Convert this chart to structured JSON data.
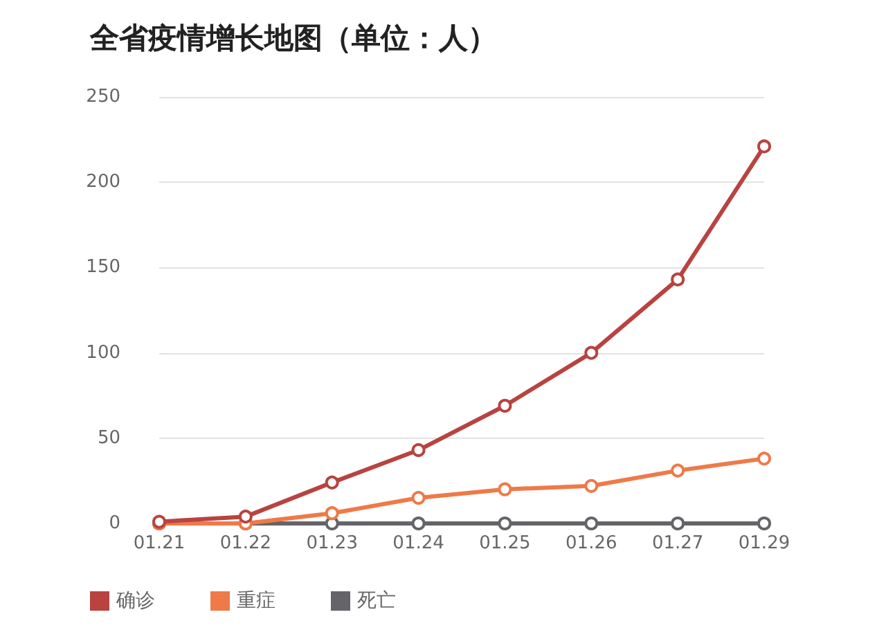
{
  "chart_data": {
    "type": "line",
    "title": "全省疫情增长地图（单位：人）",
    "categories": [
      "01.21",
      "01.22",
      "01.23",
      "01.24",
      "01.25",
      "01.26",
      "01.27",
      "01.29"
    ],
    "series": [
      {
        "name": "确诊",
        "color": "#b84340",
        "values": [
          1,
          4,
          24,
          43,
          69,
          100,
          143,
          221
        ]
      },
      {
        "name": "重症",
        "color": "#ee7a48",
        "values": [
          0,
          0,
          6,
          15,
          20,
          22,
          31,
          38
        ]
      },
      {
        "name": "死亡",
        "color": "#646469",
        "values": [
          0,
          0,
          0,
          0,
          0,
          0,
          0,
          0
        ]
      }
    ],
    "ylim": [
      0,
      250
    ],
    "yticks": [
      0,
      50,
      100,
      150,
      200,
      250
    ],
    "grid": "y",
    "legend": "bottom left",
    "marker": "circle",
    "line_style": "solid"
  }
}
